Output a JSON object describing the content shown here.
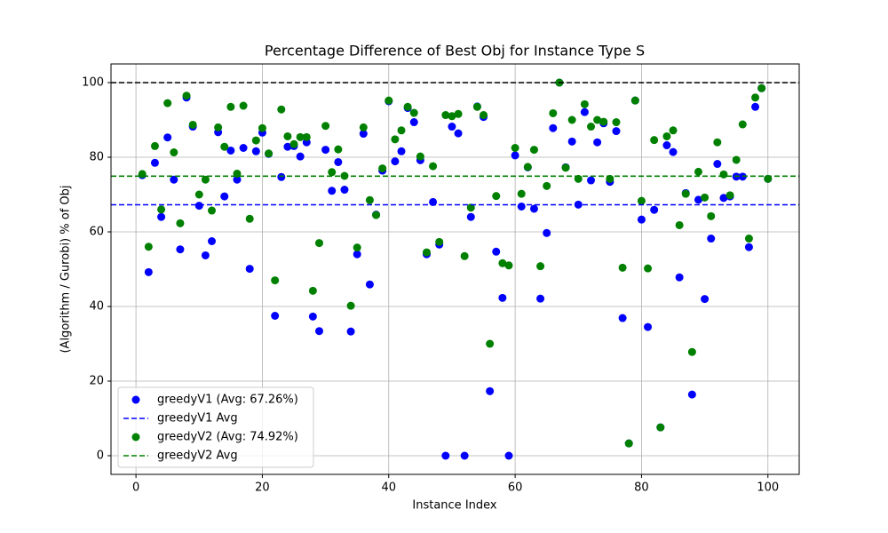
{
  "chart_data": {
    "type": "scatter",
    "title": "Percentage Difference of Best Obj for Instance Type S",
    "x_label": "Instance Index",
    "y_label": "(Algorithm / Gurobi) % of Obj",
    "x": [
      1,
      2,
      3,
      4,
      5,
      6,
      7,
      8,
      9,
      10,
      11,
      12,
      13,
      14,
      15,
      16,
      17,
      18,
      19,
      20,
      21,
      22,
      23,
      24,
      25,
      26,
      27,
      28,
      29,
      30,
      31,
      32,
      33,
      34,
      35,
      36,
      37,
      38,
      39,
      40,
      41,
      42,
      43,
      44,
      45,
      46,
      47,
      48,
      49,
      50,
      51,
      52,
      53,
      54,
      55,
      56,
      57,
      58,
      59,
      60,
      61,
      62,
      63,
      64,
      65,
      66,
      67,
      68,
      69,
      70,
      71,
      72,
      73,
      74,
      75,
      76,
      77,
      78,
      79,
      80,
      81,
      82,
      83,
      84,
      85,
      86,
      87,
      88,
      89,
      90,
      91,
      92,
      93,
      94,
      95,
      96,
      97,
      98,
      99,
      100
    ],
    "series": [
      {
        "name": "greedyV1 (Avg: 67.26%)",
        "color": "#0000ff",
        "values": [
          75.2,
          49.2,
          78.5,
          64,
          85.3,
          74,
          55.3,
          96,
          88.2,
          67,
          53.7,
          57.5,
          86.7,
          69.5,
          81.8,
          74,
          82.5,
          50.1,
          81.6,
          86.6,
          80.9,
          37.5,
          74.7,
          82.8,
          83,
          80.2,
          84,
          37.3,
          33.4,
          82,
          71,
          78.7,
          71.3,
          33.3,
          54,
          86.3,
          45.9,
          64.6,
          76.4,
          95,
          78.9,
          81.6,
          93.2,
          89.4,
          79.2,
          54,
          68,
          56.6,
          0,
          88.2,
          86.4,
          0,
          64,
          93.6,
          90.8,
          17.3,
          54.7,
          42.3,
          0,
          80.5,
          66.8,
          77.3,
          66.2,
          42.1,
          59.7,
          87.8,
          100,
          77.3,
          84.2,
          67.3,
          92.1,
          73.8,
          84,
          89.1,
          73.4,
          87,
          36.9,
          3.3,
          95.2,
          63.3,
          34.5,
          65.9,
          7.6,
          83.2,
          81.4,
          47.8,
          70.4,
          16.4,
          68.6,
          42,
          58.2,
          78.2,
          69.1,
          69.5,
          74.8,
          74.8,
          55.9,
          93.5,
          98.5,
          74.2
        ]
      },
      {
        "name": "greedyV2 (Avg: 74.92%)",
        "color": "#008000",
        "values": [
          75.5,
          56,
          83,
          66,
          94.5,
          81.3,
          62.3,
          96.5,
          88.7,
          70,
          74,
          65.7,
          88,
          82.8,
          93.5,
          75.6,
          93.8,
          63.5,
          84.5,
          87.8,
          81,
          47,
          92.8,
          85.6,
          83.5,
          85.4,
          85.4,
          44.2,
          57,
          88.4,
          76,
          82.1,
          75,
          40.2,
          55.8,
          88,
          68.5,
          64.5,
          77,
          95.2,
          84.8,
          87.2,
          93.5,
          91.9,
          80.2,
          54.5,
          77.6,
          57.3,
          91.3,
          91,
          91.6,
          53.5,
          66.5,
          93.5,
          91.3,
          30,
          69.6,
          51.6,
          51,
          82.5,
          70.2,
          77.4,
          82,
          50.8,
          72.3,
          91.8,
          100,
          77.2,
          90,
          74.2,
          94.2,
          88.2,
          90,
          89.5,
          74.2,
          89.4,
          50.4,
          3.3,
          95.2,
          68.3,
          50.2,
          84.6,
          7.6,
          85.6,
          87.2,
          61.8,
          70.2,
          27.8,
          76.1,
          69.2,
          64.2,
          84,
          75.4,
          69.8,
          79.3,
          88.8,
          58.2,
          96,
          98.5,
          74.2
        ]
      }
    ],
    "hlines": [
      {
        "name": "greedyV1 Avg",
        "value": 67.26,
        "color": "#0000ff"
      },
      {
        "name": "greedyV2 Avg",
        "value": 74.92,
        "color": "#008000"
      },
      {
        "value": 100,
        "color": "#000000"
      }
    ],
    "xlim": [
      -3.95,
      104.95
    ],
    "ylim": [
      -5,
      105
    ],
    "xticks": [
      0,
      20,
      40,
      60,
      80,
      100
    ],
    "yticks": [
      0,
      20,
      40,
      60,
      80,
      100
    ],
    "grid": true,
    "legend": "lower left"
  }
}
